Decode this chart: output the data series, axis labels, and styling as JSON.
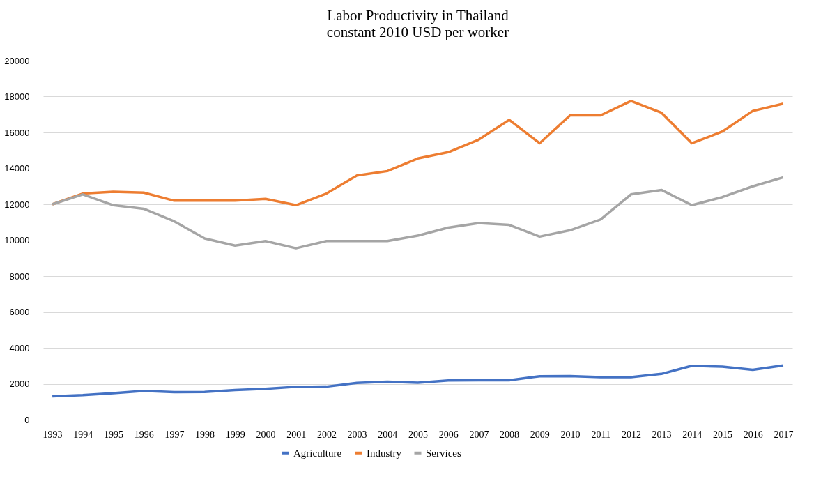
{
  "chart_data": {
    "type": "line",
    "title": "Labor Productivity in Thailand",
    "subtitle": "constant 2010 USD per worker",
    "categories": [
      "1993",
      "1994",
      "1995",
      "1996",
      "1997",
      "1998",
      "1999",
      "2000",
      "2001",
      "2002",
      "2003",
      "2004",
      "2005",
      "2006",
      "2007",
      "2008",
      "2009",
      "2010",
      "2011",
      "2012",
      "2013",
      "2014",
      "2015",
      "2016",
      "2017"
    ],
    "series": [
      {
        "name": "Agriculture",
        "color": "#4472c4",
        "values": [
          1300,
          1370,
          1480,
          1600,
          1530,
          1540,
          1650,
          1720,
          1830,
          1840,
          2050,
          2120,
          2060,
          2180,
          2190,
          2190,
          2420,
          2430,
          2370,
          2370,
          2550,
          3000,
          2950,
          2780,
          3020
        ]
      },
      {
        "name": "Industry",
        "color": "#ed7d31",
        "values": [
          12000,
          12600,
          12700,
          12650,
          12200,
          12200,
          12200,
          12300,
          11950,
          12600,
          13600,
          13850,
          14550,
          14900,
          15600,
          16700,
          15400,
          16950,
          16950,
          17750,
          17100,
          15400,
          16050,
          17200,
          17600
        ]
      },
      {
        "name": "Services",
        "color": "#a5a5a5",
        "values": [
          12000,
          12550,
          11950,
          11750,
          11050,
          10100,
          9700,
          9950,
          9550,
          9950,
          9950,
          9950,
          10250,
          10700,
          10950,
          10850,
          10200,
          10550,
          11150,
          12550,
          12800,
          11950,
          12400,
          13000,
          13500
        ]
      }
    ],
    "ylim": [
      0,
      20000
    ],
    "yticks": [
      0,
      2000,
      4000,
      6000,
      8000,
      10000,
      12000,
      14000,
      16000,
      18000,
      20000
    ],
    "grid": "y",
    "legend": "bottom",
    "marker": "none",
    "line_style": "solid"
  }
}
